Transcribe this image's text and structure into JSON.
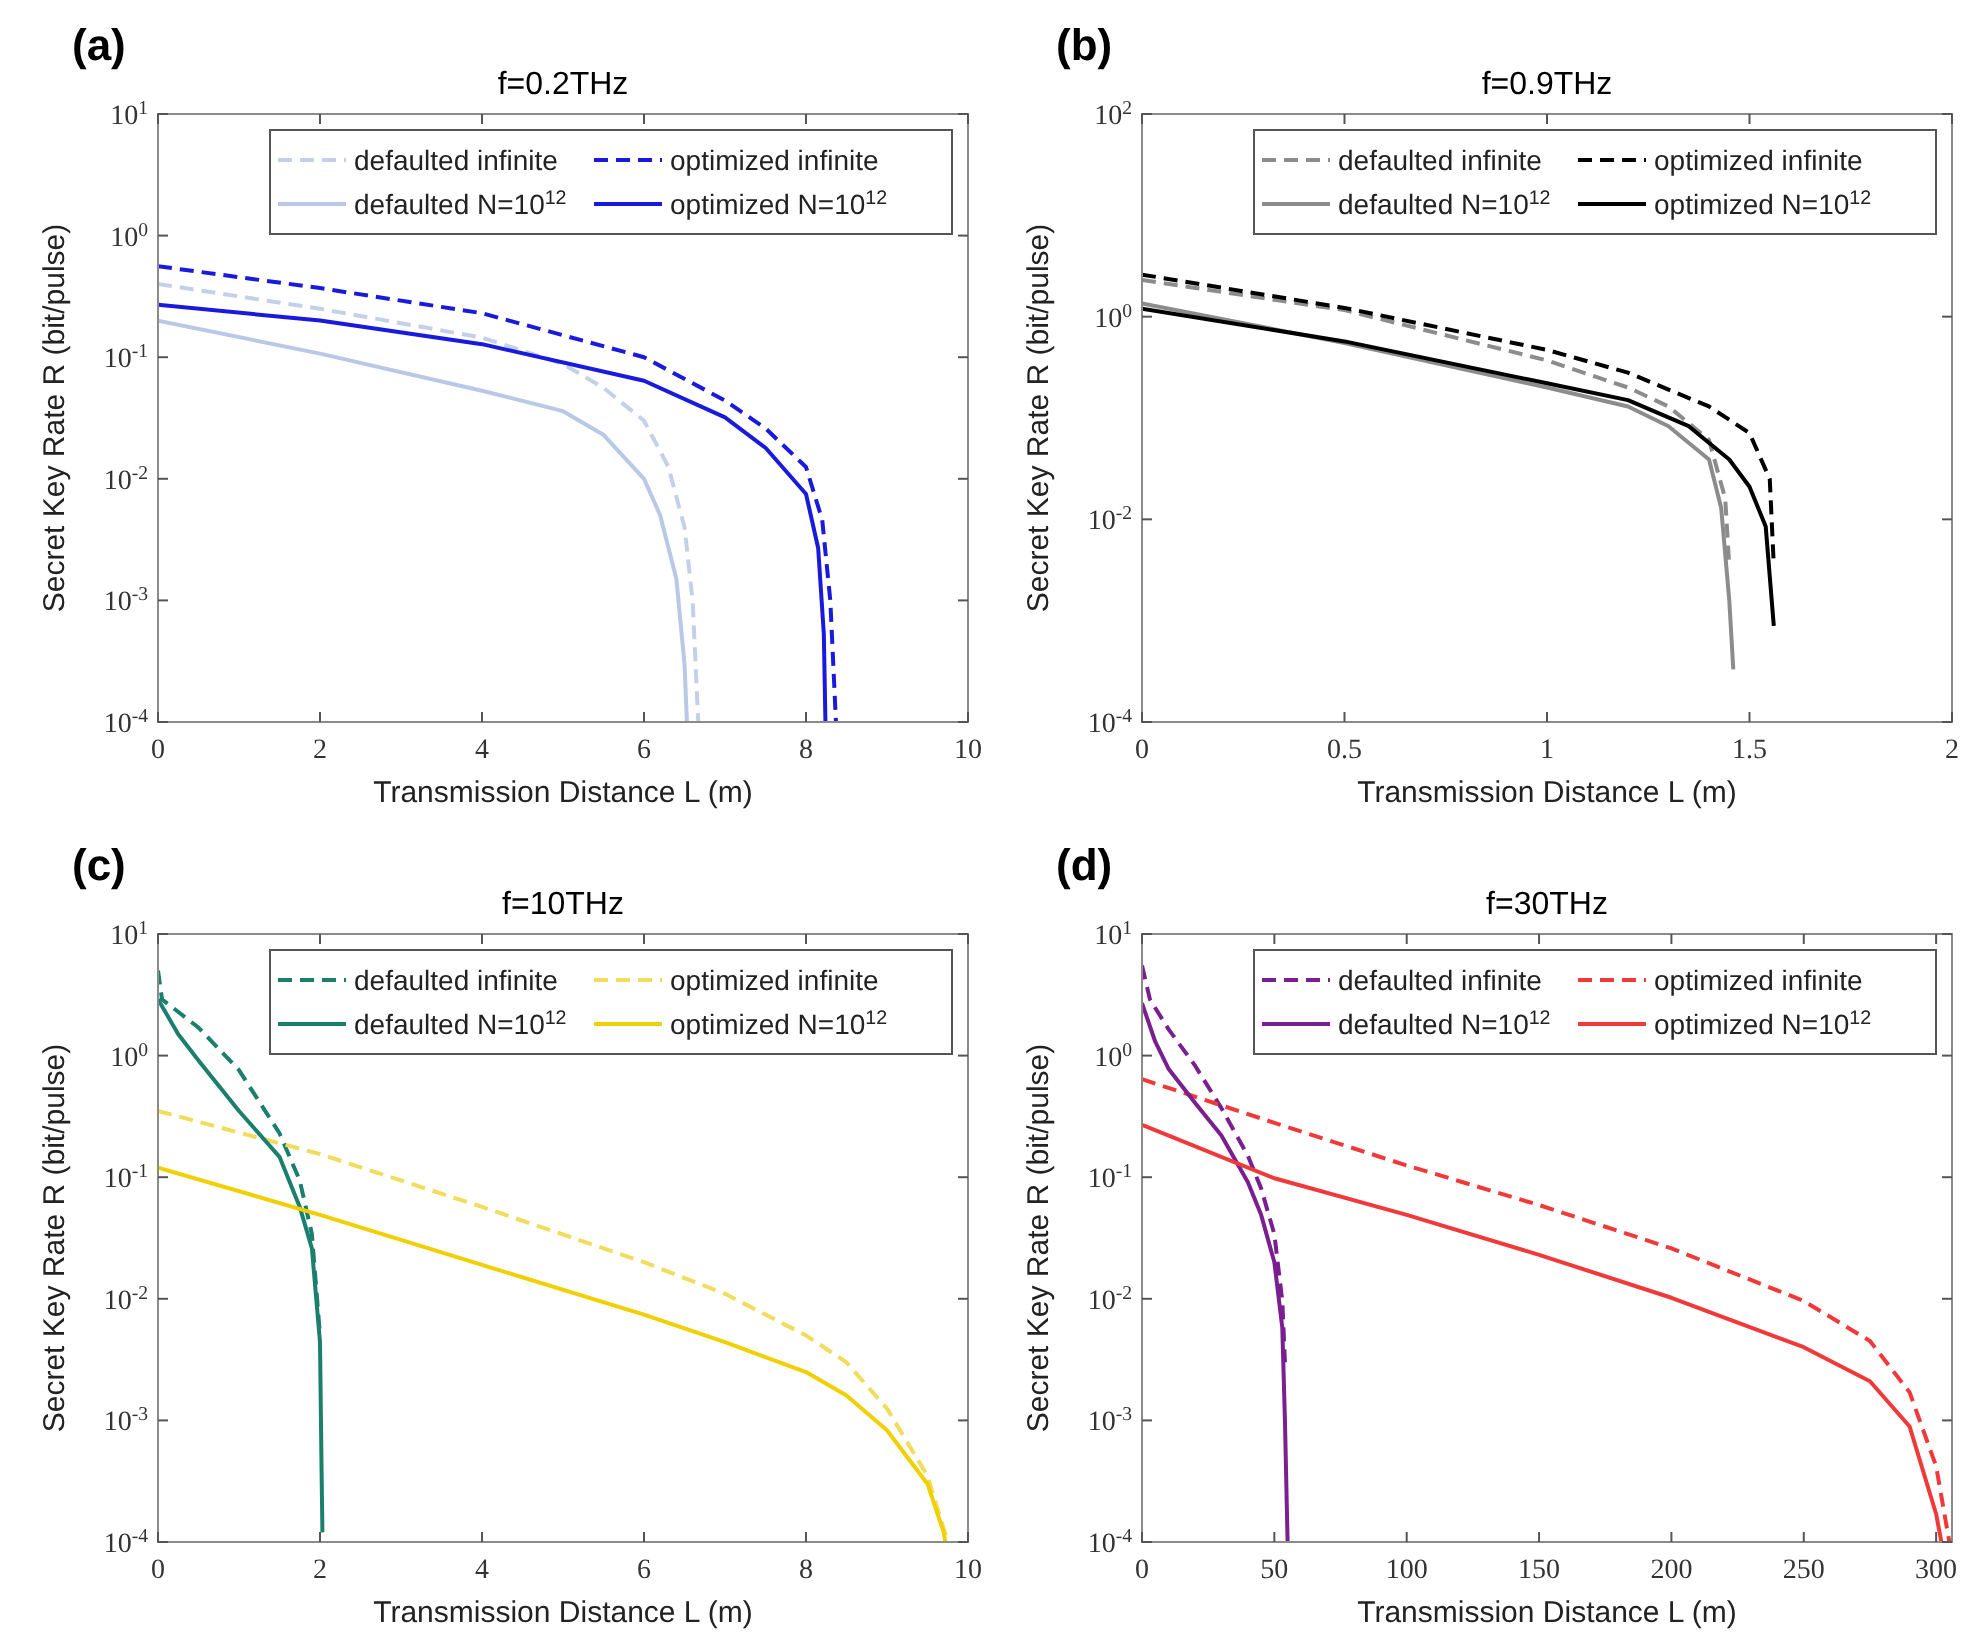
{
  "chart_data": [
    {
      "type": "line",
      "title": "f=0.2THz",
      "annotations": [
        "(a)"
      ],
      "xlabel": "Transmission Distance L (m)",
      "ylabel": "Secret Key Rate R (bit/pulse)",
      "log": "y",
      "legend": "top right",
      "xlim": [
        0,
        10
      ],
      "xticks": [
        0,
        2,
        4,
        6,
        8,
        10
      ],
      "ylim": [
        0.0001,
        10
      ],
      "yticks": [
        {
          "value": 0.0001,
          "label": "10$^{-4}$"
        },
        {
          "value": 0.001,
          "label": "10$^{-3}$"
        },
        {
          "value": 0.01,
          "label": "10$^{-2}$"
        },
        {
          "value": 0.1,
          "label": "10$^{-1}$"
        },
        {
          "value": 1,
          "label": "10$^{0}$"
        },
        {
          "value": 10,
          "label": "10$^{1}$"
        }
      ],
      "series": [
        {
          "name": "defaulted infinite",
          "color": "#c4d0ea",
          "line_style": "dashed",
          "x": [
            0,
            2,
            4,
            5,
            5.5,
            6,
            6.3,
            6.5,
            6.6,
            6.67
          ],
          "values": [
            0.4,
            0.25,
            0.145,
            0.088,
            0.056,
            0.03,
            0.0126,
            0.004,
            0.001,
            0.0001
          ]
        },
        {
          "name": "optimized infinite",
          "color": "#1a1adc",
          "line_style": "dashed",
          "x": [
            0,
            2,
            4,
            6,
            7,
            7.5,
            8,
            8.2,
            8.3,
            8.37
          ],
          "values": [
            0.56,
            0.37,
            0.23,
            0.1,
            0.044,
            0.026,
            0.0125,
            0.0046,
            0.001,
            0.0001
          ]
        },
        {
          "name": "defaulted N=10$^{12}$",
          "color": "#b8c8e6",
          "line_style": "solid",
          "x": [
            0,
            2,
            4,
            5,
            5.5,
            6,
            6.2,
            6.4,
            6.5,
            6.53
          ],
          "values": [
            0.2,
            0.107,
            0.053,
            0.036,
            0.023,
            0.01,
            0.005,
            0.0015,
            0.0003,
            0.0001
          ]
        },
        {
          "name": "optimized N=10$^{12}$",
          "color": "#1a1adc",
          "line_style": "solid",
          "x": [
            0,
            2,
            4,
            6,
            7,
            7.5,
            8,
            8.15,
            8.22,
            8.24
          ],
          "values": [
            0.27,
            0.2,
            0.128,
            0.064,
            0.032,
            0.018,
            0.0075,
            0.0027,
            0.00053,
            0.0001
          ]
        }
      ]
    },
    {
      "type": "line",
      "title": "f=0.9THz",
      "annotations": [
        "(b)"
      ],
      "xlabel": "Transmission Distance L (m)",
      "ylabel": "Secret Key Rate R (bit/pulse)",
      "log": "y",
      "legend": "top right",
      "xlim": [
        0,
        2
      ],
      "xticks": [
        0,
        0.5,
        1,
        1.5,
        2
      ],
      "ylim": [
        0.0001,
        100
      ],
      "yticks": [
        {
          "value": 0.0001,
          "label": "10$^{-4}$"
        },
        {
          "value": 0.01,
          "label": "10$^{-2}$"
        },
        {
          "value": 1,
          "label": "10$^{0}$"
        },
        {
          "value": 100,
          "label": "10$^{2}$"
        }
      ],
      "series": [
        {
          "name": "defaulted infinite",
          "color": "#8c8c8c",
          "line_style": "dashed",
          "x": [
            0,
            0.5,
            1,
            1.2,
            1.3,
            1.4,
            1.44,
            1.45
          ],
          "values": [
            2.3,
            1.16,
            0.37,
            0.2,
            0.13,
            0.061,
            0.016,
            0.0035
          ]
        },
        {
          "name": "optimized infinite",
          "color": "#000000",
          "line_style": "dashed",
          "x": [
            0,
            0.5,
            1,
            1.2,
            1.4,
            1.5,
            1.55,
            1.56
          ],
          "values": [
            2.6,
            1.22,
            0.47,
            0.28,
            0.13,
            0.071,
            0.025,
            0.0035
          ]
        },
        {
          "name": "defaulted N=10$^{12}$",
          "color": "#8c8c8c",
          "line_style": "solid",
          "x": [
            0,
            0.5,
            1,
            1.2,
            1.3,
            1.4,
            1.43,
            1.45,
            1.46
          ],
          "values": [
            1.35,
            0.55,
            0.2,
            0.13,
            0.083,
            0.039,
            0.013,
            0.0016,
            0.00033
          ]
        },
        {
          "name": "optimized N=10$^{12}$",
          "color": "#000000",
          "line_style": "solid",
          "x": [
            0,
            0.5,
            1,
            1.2,
            1.35,
            1.45,
            1.5,
            1.54,
            1.56
          ],
          "values": [
            1.2,
            0.57,
            0.22,
            0.15,
            0.083,
            0.039,
            0.021,
            0.0085,
            0.00089
          ]
        }
      ]
    },
    {
      "type": "line",
      "title": "f=10THz",
      "annotations": [
        "(c)"
      ],
      "xlabel": "Transmission Distance L (m)",
      "ylabel": "Secret Key Rate R (bit/pulse)",
      "log": "y",
      "legend": "top right",
      "xlim": [
        0,
        10
      ],
      "xticks": [
        0,
        2,
        4,
        6,
        8,
        10
      ],
      "ylim": [
        0.0001,
        10
      ],
      "yticks": [
        {
          "value": 0.0001,
          "label": "10$^{-4}$"
        },
        {
          "value": 0.001,
          "label": "10$^{-3}$"
        },
        {
          "value": 0.01,
          "label": "10$^{-2}$"
        },
        {
          "value": 0.1,
          "label": "10$^{-1}$"
        },
        {
          "value": 1,
          "label": "10$^{0}$"
        },
        {
          "value": 10,
          "label": "10$^{1}$"
        }
      ],
      "series": [
        {
          "name": "defaulted infinite",
          "color": "#1b7f6e",
          "line_style": "dashed",
          "x": [
            0,
            0.05,
            0.5,
            1,
            1.5,
            1.75,
            1.9,
            2.0
          ],
          "values": [
            5,
            2.9,
            1.7,
            0.76,
            0.23,
            0.094,
            0.034,
            0.005
          ]
        },
        {
          "name": "optimized infinite",
          "color": "#f2dc5c",
          "line_style": "dashed",
          "x": [
            0,
            2,
            4,
            6,
            7,
            8,
            8.5,
            9,
            9.5,
            9.75
          ],
          "values": [
            0.35,
            0.155,
            0.057,
            0.02,
            0.011,
            0.005,
            0.003,
            0.00125,
            0.00035,
            0.0001
          ]
        },
        {
          "name": "defaulted N=10$^{12}$",
          "color": "#1b7f6e",
          "line_style": "solid",
          "x": [
            0,
            0.25,
            0.5,
            1,
            1.5,
            1.75,
            1.9,
            2.0,
            2.02,
            2.03
          ],
          "values": [
            2.9,
            1.5,
            0.91,
            0.35,
            0.147,
            0.057,
            0.026,
            0.0044,
            0.00036,
            0.00012
          ]
        },
        {
          "name": "optimized N=10$^{12}$",
          "color": "#f0d000",
          "line_style": "solid",
          "x": [
            0,
            2,
            4,
            6,
            7,
            8,
            8.5,
            9,
            9.5,
            9.7,
            9.72
          ],
          "values": [
            0.12,
            0.049,
            0.019,
            0.0074,
            0.0044,
            0.0025,
            0.0016,
            0.00083,
            0.0003,
            0.00012,
            0.0001
          ]
        }
      ]
    },
    {
      "type": "line",
      "title": "f=30THz",
      "annotations": [
        "(d)"
      ],
      "xlabel": "Transmission Distance L (m)",
      "ylabel": "Secret Key Rate R (bit/pulse)",
      "log": "y",
      "legend": "top right",
      "xlim": [
        0,
        306
      ],
      "xticks": [
        0,
        50,
        100,
        150,
        200,
        250,
        300
      ],
      "ylim": [
        0.0001,
        10
      ],
      "yticks": [
        {
          "value": 0.0001,
          "label": "10$^{-4}$"
        },
        {
          "value": 0.001,
          "label": "10$^{-3}$"
        },
        {
          "value": 0.01,
          "label": "10$^{-2}$"
        },
        {
          "value": 0.1,
          "label": "10$^{-1}$"
        },
        {
          "value": 1,
          "label": "10$^{0}$"
        },
        {
          "value": 10,
          "label": "10$^{1}$"
        }
      ],
      "series": [
        {
          "name": "defaulted infinite",
          "color": "#7a1f8f",
          "line_style": "dashed",
          "x": [
            0,
            3,
            10,
            20,
            30,
            40,
            45,
            50,
            53,
            54
          ],
          "values": [
            5.5,
            2.9,
            1.65,
            0.83,
            0.37,
            0.15,
            0.081,
            0.034,
            0.0096,
            0.003
          ]
        },
        {
          "name": "optimized infinite",
          "color": "#f03a3a",
          "line_style": "dashed",
          "x": [
            0,
            50,
            100,
            150,
            200,
            250,
            275,
            290,
            300,
            305
          ],
          "values": [
            0.64,
            0.28,
            0.125,
            0.059,
            0.026,
            0.0096,
            0.0045,
            0.0017,
            0.00042,
            0.0001
          ]
        },
        {
          "name": "defaulted N=10$^{12}$",
          "color": "#7a1f8f",
          "line_style": "solid",
          "x": [
            0,
            5,
            10,
            20,
            30,
            40,
            45,
            50,
            53,
            54,
            55
          ],
          "values": [
            2.7,
            1.3,
            0.78,
            0.41,
            0.22,
            0.091,
            0.049,
            0.02,
            0.0058,
            0.001,
            0.0001
          ]
        },
        {
          "name": "optimized N=10$^{12}$",
          "color": "#f03a3a",
          "line_style": "solid",
          "x": [
            0,
            50,
            100,
            150,
            200,
            250,
            275,
            290,
            300,
            302
          ],
          "values": [
            0.27,
            0.098,
            0.049,
            0.023,
            0.0102,
            0.004,
            0.0021,
            0.00089,
            0.00017,
            0.0001
          ]
        }
      ]
    }
  ]
}
